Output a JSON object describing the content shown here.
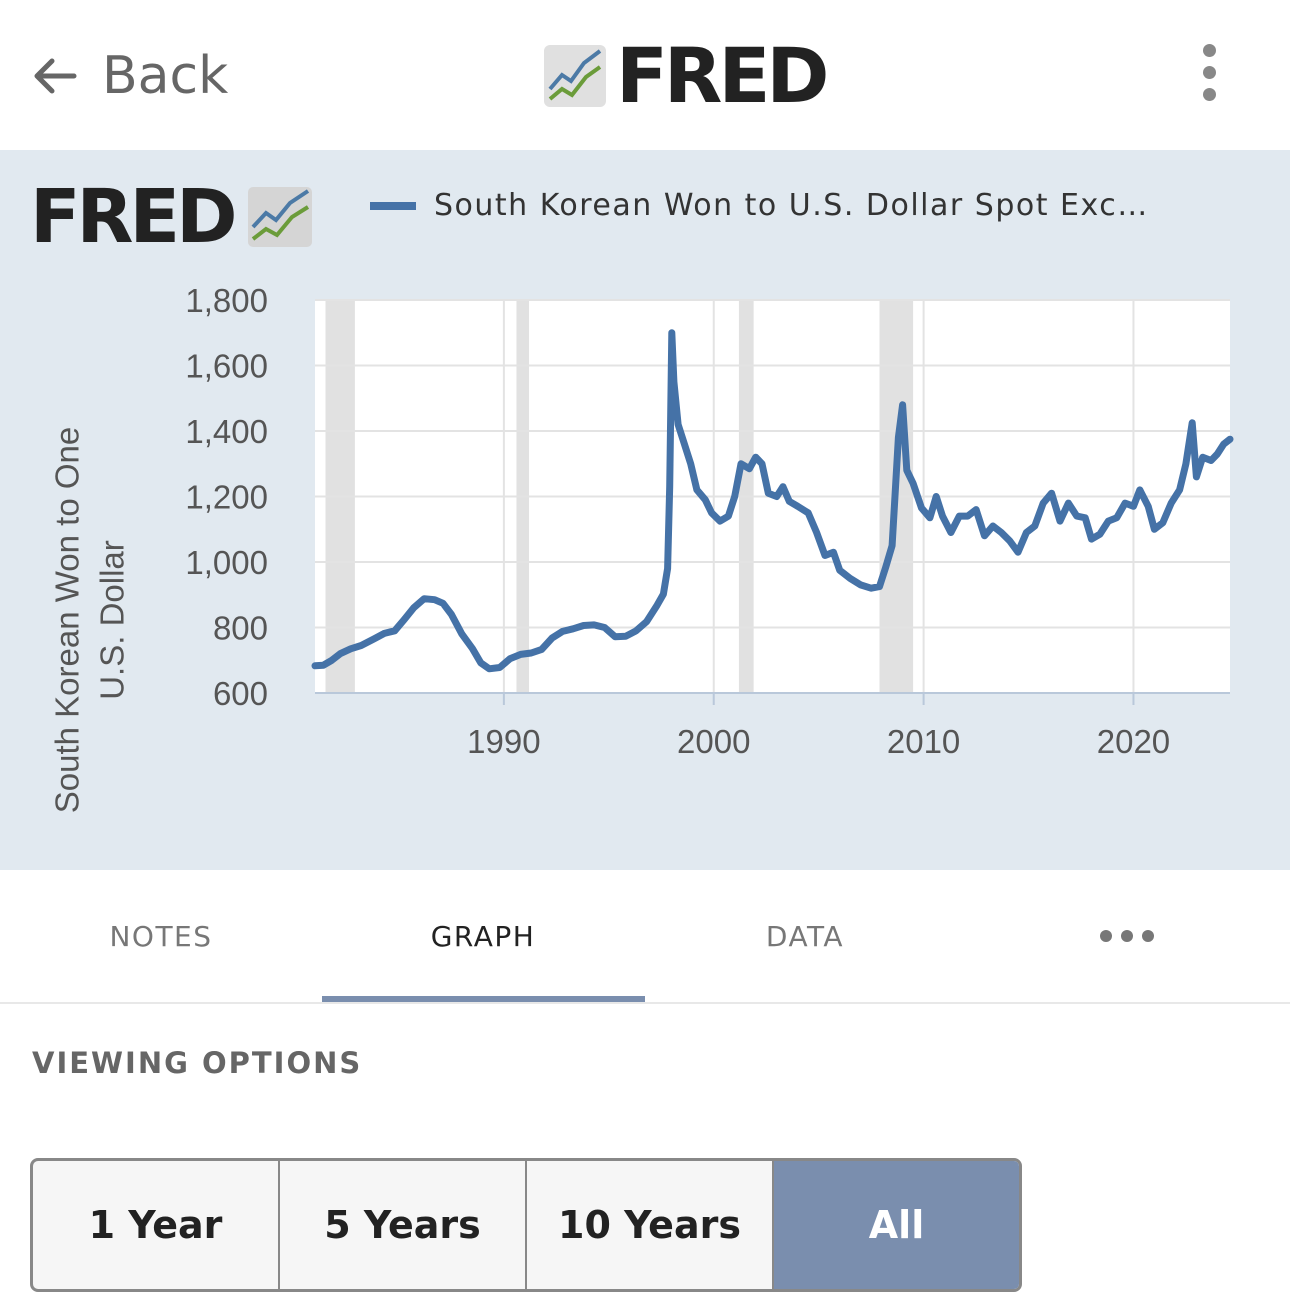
{
  "header": {
    "back_label": "Back",
    "logo_text": "FRED"
  },
  "graph": {
    "logo_text": "FRED",
    "legend_label": "South Korean Won to U.S. Dollar Spot Exc…",
    "series_color": "#4572a7",
    "recession_color": "#e1e1e1"
  },
  "chart_data": {
    "type": "line",
    "ylabel": "South Korean Won to One U.S. Dollar",
    "ylim": [
      600,
      1800
    ],
    "xlim": [
      1981.0,
      2024.6
    ],
    "x_ticks": [
      "1990",
      "2000",
      "2010",
      "2020"
    ],
    "y_ticks": [
      "1,800",
      "1,600",
      "1,400",
      "1,200",
      "1,000",
      "800",
      "600"
    ],
    "grid": true,
    "recessions": [
      [
        1981.5,
        1982.9
      ],
      [
        1990.6,
        1991.2
      ],
      [
        2001.2,
        2001.9
      ],
      [
        2007.9,
        2009.5
      ]
    ],
    "series": [
      {
        "name": "South Korean Won to U.S. Dollar Spot Exc…",
        "points": [
          [
            1981.0,
            683
          ],
          [
            1981.4,
            685
          ],
          [
            1981.8,
            700
          ],
          [
            1982.2,
            720
          ],
          [
            1982.7,
            735
          ],
          [
            1983.2,
            745
          ],
          [
            1983.8,
            765
          ],
          [
            1984.3,
            782
          ],
          [
            1984.8,
            790
          ],
          [
            1985.2,
            820
          ],
          [
            1985.7,
            860
          ],
          [
            1986.2,
            888
          ],
          [
            1986.7,
            885
          ],
          [
            1987.1,
            874
          ],
          [
            1987.5,
            840
          ],
          [
            1988.0,
            780
          ],
          [
            1988.5,
            736
          ],
          [
            1988.9,
            692
          ],
          [
            1989.3,
            674
          ],
          [
            1989.8,
            678
          ],
          [
            1990.3,
            705
          ],
          [
            1990.8,
            718
          ],
          [
            1991.3,
            722
          ],
          [
            1991.8,
            733
          ],
          [
            1992.3,
            768
          ],
          [
            1992.8,
            788
          ],
          [
            1993.3,
            796
          ],
          [
            1993.8,
            806
          ],
          [
            1994.3,
            808
          ],
          [
            1994.8,
            800
          ],
          [
            1995.3,
            772
          ],
          [
            1995.8,
            773
          ],
          [
            1996.3,
            790
          ],
          [
            1996.8,
            818
          ],
          [
            1997.3,
            868
          ],
          [
            1997.6,
            902
          ],
          [
            1997.8,
            980
          ],
          [
            1997.9,
            1230
          ],
          [
            1998.0,
            1700
          ],
          [
            1998.1,
            1550
          ],
          [
            1998.3,
            1420
          ],
          [
            1998.6,
            1360
          ],
          [
            1998.9,
            1300
          ],
          [
            1999.2,
            1220
          ],
          [
            1999.6,
            1190
          ],
          [
            1999.9,
            1150
          ],
          [
            2000.3,
            1125
          ],
          [
            2000.7,
            1140
          ],
          [
            2001.0,
            1200
          ],
          [
            2001.3,
            1300
          ],
          [
            2001.7,
            1285
          ],
          [
            2002.0,
            1320
          ],
          [
            2002.3,
            1300
          ],
          [
            2002.6,
            1210
          ],
          [
            2003.0,
            1200
          ],
          [
            2003.3,
            1230
          ],
          [
            2003.6,
            1185
          ],
          [
            2004.0,
            1170
          ],
          [
            2004.5,
            1150
          ],
          [
            2004.9,
            1090
          ],
          [
            2005.3,
            1020
          ],
          [
            2005.7,
            1030
          ],
          [
            2006.0,
            975
          ],
          [
            2006.5,
            950
          ],
          [
            2007.0,
            930
          ],
          [
            2007.5,
            920
          ],
          [
            2007.9,
            925
          ],
          [
            2008.2,
            985
          ],
          [
            2008.5,
            1050
          ],
          [
            2008.8,
            1380
          ],
          [
            2009.0,
            1480
          ],
          [
            2009.2,
            1280
          ],
          [
            2009.5,
            1240
          ],
          [
            2009.9,
            1165
          ],
          [
            2010.3,
            1135
          ],
          [
            2010.6,
            1200
          ],
          [
            2010.9,
            1140
          ],
          [
            2011.3,
            1090
          ],
          [
            2011.7,
            1140
          ],
          [
            2012.1,
            1140
          ],
          [
            2012.5,
            1160
          ],
          [
            2012.9,
            1080
          ],
          [
            2013.3,
            1110
          ],
          [
            2013.7,
            1090
          ],
          [
            2014.1,
            1065
          ],
          [
            2014.5,
            1030
          ],
          [
            2014.9,
            1090
          ],
          [
            2015.3,
            1110
          ],
          [
            2015.7,
            1180
          ],
          [
            2016.1,
            1210
          ],
          [
            2016.5,
            1125
          ],
          [
            2016.9,
            1180
          ],
          [
            2017.3,
            1140
          ],
          [
            2017.7,
            1135
          ],
          [
            2018.0,
            1070
          ],
          [
            2018.4,
            1085
          ],
          [
            2018.8,
            1125
          ],
          [
            2019.2,
            1135
          ],
          [
            2019.6,
            1180
          ],
          [
            2020.0,
            1170
          ],
          [
            2020.3,
            1220
          ],
          [
            2020.7,
            1170
          ],
          [
            2021.0,
            1100
          ],
          [
            2021.4,
            1120
          ],
          [
            2021.8,
            1180
          ],
          [
            2022.2,
            1220
          ],
          [
            2022.5,
            1300
          ],
          [
            2022.8,
            1425
          ],
          [
            2023.0,
            1260
          ],
          [
            2023.3,
            1320
          ],
          [
            2023.7,
            1310
          ],
          [
            2024.0,
            1330
          ],
          [
            2024.3,
            1360
          ],
          [
            2024.6,
            1375
          ]
        ]
      }
    ]
  },
  "tabs": [
    {
      "label": "NOTES"
    },
    {
      "label": "GRAPH",
      "active": true
    },
    {
      "label": "DATA"
    }
  ],
  "viewing_options": {
    "title": "VIEWING OPTIONS",
    "ranges": [
      "1 Year",
      "5 Years",
      "10 Years",
      "All"
    ],
    "selected": "All",
    "accent": "#7a8eae"
  }
}
